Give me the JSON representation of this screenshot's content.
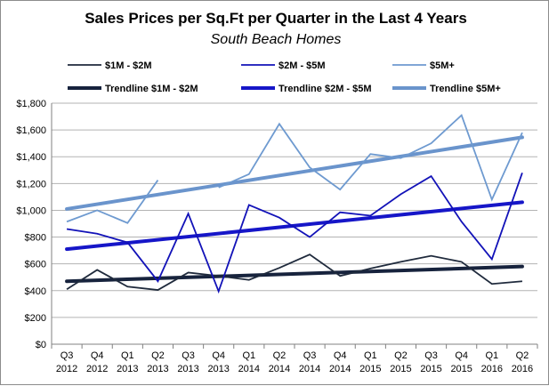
{
  "chart_data": {
    "type": "line",
    "title": "Sales Prices per Sq.Ft per Quarter in the Last 4 Years",
    "subtitle": "South Beach Homes",
    "categories": [
      [
        "Q3",
        "2012"
      ],
      [
        "Q4",
        "2012"
      ],
      [
        "Q1",
        "2013"
      ],
      [
        "Q2",
        "2013"
      ],
      [
        "Q3",
        "2013"
      ],
      [
        "Q4",
        "2013"
      ],
      [
        "Q1",
        "2014"
      ],
      [
        "Q2",
        "2014"
      ],
      [
        "Q3",
        "2014"
      ],
      [
        "Q4",
        "2014"
      ],
      [
        "Q1",
        "2015"
      ],
      [
        "Q2",
        "2015"
      ],
      [
        "Q3",
        "2015"
      ],
      [
        "Q4",
        "2015"
      ],
      [
        "Q1",
        "2016"
      ],
      [
        "Q2",
        "2016"
      ]
    ],
    "ylim": [
      0,
      1800
    ],
    "yticks": [
      0,
      200,
      400,
      600,
      800,
      1000,
      1200,
      1400,
      1600,
      1800
    ],
    "ytick_labels": [
      "$0",
      "$200",
      "$400",
      "$600",
      "$800",
      "$1,000",
      "$1,200",
      "$1,400",
      "$1,600",
      "$1,800"
    ],
    "grid": true,
    "legend_position": "top",
    "series": [
      {
        "name": "$1M - $2M",
        "color": "#1f2a3c",
        "width": 1.8,
        "values": [
          410,
          555,
          430,
          405,
          535,
          510,
          480,
          570,
          670,
          510,
          565,
          615,
          660,
          615,
          450,
          470
        ]
      },
      {
        "name": "$2M - $5M",
        "color": "#1212b8",
        "width": 1.8,
        "values": [
          860,
          825,
          760,
          470,
          975,
          395,
          1040,
          945,
          800,
          985,
          960,
          1120,
          1255,
          915,
          635,
          1280
        ]
      },
      {
        "name": "$5M+",
        "color": "#6e9ad0",
        "width": 1.8,
        "values": [
          915,
          1000,
          905,
          1225,
          null,
          1170,
          1270,
          1645,
          1320,
          1155,
          1420,
          1390,
          1500,
          1710,
          1080,
          1580
        ]
      }
    ],
    "trendlines": [
      {
        "name": "Trendline $1M - $2M",
        "color": "#17233d",
        "width": 4,
        "values": [
          470,
          580
        ]
      },
      {
        "name": "Trendline $2M - $5M",
        "color": "#1616c8",
        "width": 4,
        "values": [
          710,
          1060
        ]
      },
      {
        "name": "Trendline $5M+",
        "color": "#6a94cc",
        "width": 4,
        "values": [
          1010,
          1545
        ]
      }
    ]
  }
}
